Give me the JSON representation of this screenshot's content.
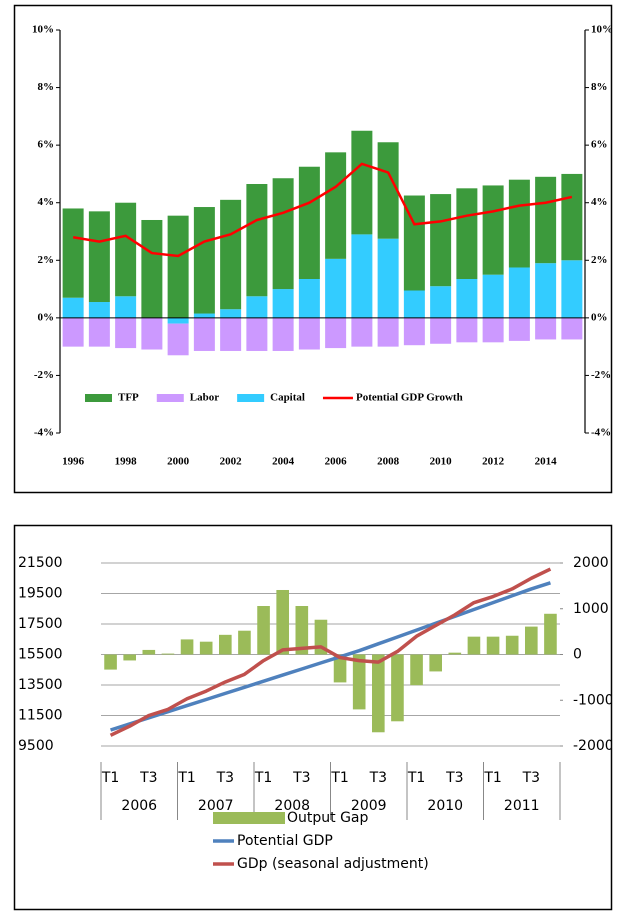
{
  "chart_data": [
    {
      "type": "bar",
      "stacked": true,
      "categories": [
        "1996",
        null,
        "1998",
        null,
        "2000",
        null,
        "2002",
        null,
        "2004",
        null,
        "2006",
        null,
        "2008",
        null,
        "2010",
        null,
        "2012",
        null,
        "2014",
        null
      ],
      "ylim": [
        -4,
        10
      ],
      "yticks": [
        {
          "value": -4,
          "label": "-4%"
        },
        {
          "value": -2,
          "label": "-2%"
        },
        {
          "value": 0,
          "label": "0%"
        },
        {
          "value": 2,
          "label": "2%"
        },
        {
          "value": 4,
          "label": "4%"
        },
        {
          "value": 6,
          "label": "6%"
        },
        {
          "value": 8,
          "label": "8%"
        },
        {
          "value": 10,
          "label": "10%"
        }
      ],
      "legend": "bottom-left",
      "series": [
        {
          "name": "TFP",
          "type": "bar",
          "color": "#3c9a3c",
          "values": [
            3.1,
            3.15,
            3.25,
            3.4,
            3.55,
            3.7,
            3.8,
            3.9,
            3.85,
            3.9,
            3.7,
            3.6,
            3.35,
            3.3,
            3.2,
            3.15,
            3.1,
            3.05,
            3.0,
            3.0
          ]
        },
        {
          "name": "Labor",
          "type": "bar",
          "color": "#cc99ff",
          "values": [
            -1.0,
            -1.0,
            -1.05,
            -1.1,
            -1.1,
            -1.15,
            -1.15,
            -1.15,
            -1.15,
            -1.1,
            -1.05,
            -1.0,
            -1.0,
            -0.95,
            -0.9,
            -0.85,
            -0.85,
            -0.8,
            -0.75,
            -0.75
          ]
        },
        {
          "name": "Capital",
          "type": "bar",
          "color": "#33ccff",
          "values": [
            0.7,
            0.55,
            0.75,
            0,
            -0.2,
            0.15,
            0.3,
            0.75,
            1.0,
            1.35,
            2.05,
            2.9,
            2.75,
            0.95,
            1.1,
            1.35,
            1.5,
            1.75,
            1.9,
            2.0
          ]
        },
        {
          "name": "Potential GDP Growth",
          "type": "line",
          "color": "#ff0000",
          "values": [
            2.8,
            2.65,
            2.85,
            2.25,
            2.15,
            2.65,
            2.9,
            3.4,
            3.65,
            4.0,
            4.55,
            5.35,
            5.05,
            3.25,
            3.35,
            3.55,
            3.7,
            3.9,
            4.0,
            4.2
          ]
        }
      ]
    },
    {
      "type": "combo",
      "categories": [
        "T1",
        null,
        "T3",
        null,
        "T1",
        null,
        "T3",
        null,
        "T1",
        null,
        "T3",
        null,
        "T1",
        null,
        "T3",
        null,
        "T1",
        null,
        "T3",
        null,
        "T1",
        null,
        "T3",
        null
      ],
      "years": [
        "2006",
        "2007",
        "2008",
        "2009",
        "2010",
        "2011"
      ],
      "ylim": [
        9500,
        21500
      ],
      "yticks": [
        9500,
        11500,
        13500,
        15500,
        17500,
        19500,
        21500
      ],
      "y2lim": [
        -2000,
        2000
      ],
      "y2ticks": [
        -2000,
        -1000,
        0,
        1000,
        2000
      ],
      "grid": true,
      "legend": "bottom",
      "series": [
        {
          "name": "Output Gap",
          "type": "bar",
          "axis": "y2",
          "color": "#9bbb59",
          "values": [
            -330,
            -130,
            100,
            20,
            330,
            280,
            430,
            520,
            1060,
            1410,
            1060,
            760,
            -610,
            -1200,
            -1700,
            -1460,
            -670,
            -370,
            40,
            390,
            390,
            410,
            610,
            890
          ]
        },
        {
          "name": "Potential GDP",
          "type": "line",
          "color": "#4f81bd",
          "values": [
            10550,
            10950,
            11350,
            11750,
            12150,
            12550,
            12950,
            13350,
            13750,
            14150,
            14550,
            14950,
            15350,
            15750,
            16200,
            16650,
            17100,
            17550,
            18000,
            18450,
            18900,
            19350,
            19800,
            20200
          ]
        },
        {
          "name": "GDp (seasonal adjustment)",
          "type": "line",
          "color": "#c0504d",
          "values": [
            10200,
            10800,
            11500,
            11900,
            12600,
            13100,
            13700,
            14200,
            15100,
            15800,
            15900,
            16000,
            15300,
            15100,
            15000,
            15700,
            16700,
            17400,
            18100,
            18900,
            19300,
            19800,
            20500,
            21100
          ]
        }
      ]
    }
  ]
}
